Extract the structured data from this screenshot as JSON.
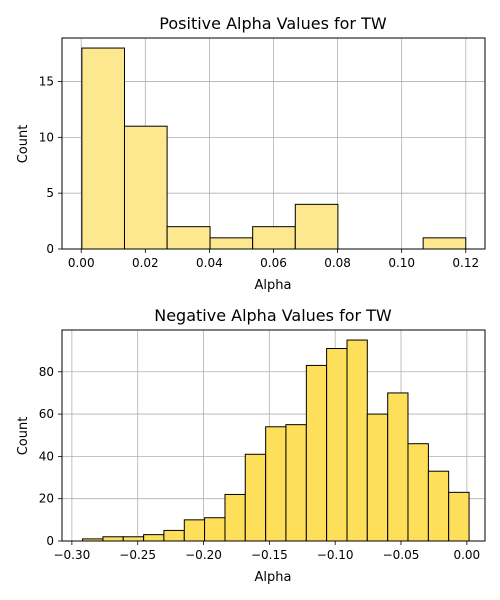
{
  "chart_data": [
    {
      "type": "bar",
      "title": "Positive Alpha Values for TW",
      "xlabel": "Alpha",
      "ylabel": "Count",
      "bar_color": "#fee88f",
      "edge_color": "#000000",
      "grid": true,
      "xlim": [
        -0.006,
        0.126
      ],
      "ylim": [
        0,
        18.9
      ],
      "xticks": [
        0.0,
        0.02,
        0.04,
        0.06,
        0.08,
        0.1,
        0.12
      ],
      "xtick_labels": [
        "0.00",
        "0.02",
        "0.04",
        "0.06",
        "0.08",
        "0.10",
        "0.12"
      ],
      "yticks": [
        0,
        5,
        10,
        15
      ],
      "ytick_labels": [
        "0",
        "5",
        "10",
        "15"
      ],
      "bins": [
        {
          "x0": 0.0002,
          "x1": 0.0135,
          "count": 18
        },
        {
          "x0": 0.0135,
          "x1": 0.0268,
          "count": 11
        },
        {
          "x0": 0.0268,
          "x1": 0.0402,
          "count": 2
        },
        {
          "x0": 0.0402,
          "x1": 0.0535,
          "count": 1
        },
        {
          "x0": 0.0535,
          "x1": 0.0668,
          "count": 2
        },
        {
          "x0": 0.0668,
          "x1": 0.0801,
          "count": 4
        },
        {
          "x0": 0.0801,
          "x1": 0.0934,
          "count": 0
        },
        {
          "x0": 0.0934,
          "x1": 0.1067,
          "count": 0
        },
        {
          "x0": 0.1067,
          "x1": 0.12,
          "count": 1
        }
      ]
    },
    {
      "type": "bar",
      "title": "Negative Alpha Values for TW",
      "xlabel": "Alpha",
      "ylabel": "Count",
      "bar_color": "#fedf5a",
      "edge_color": "#000000",
      "grid": true,
      "xlim": [
        -0.3075,
        0.0138
      ],
      "ylim": [
        0,
        99.75
      ],
      "xticks": [
        -0.3,
        -0.25,
        -0.2,
        -0.15,
        -0.1,
        -0.05,
        0.0
      ],
      "xtick_labels": [
        "−0.30",
        "−0.25",
        "−0.20",
        "−0.15",
        "−0.10",
        "−0.05",
        "0.00"
      ],
      "yticks": [
        0,
        20,
        40,
        60,
        80
      ],
      "ytick_labels": [
        "0",
        "20",
        "40",
        "60",
        "80"
      ],
      "bins": [
        {
          "x0": -0.2919,
          "x1": -0.2764,
          "count": 1
        },
        {
          "x0": -0.2764,
          "x1": -0.261,
          "count": 2
        },
        {
          "x0": -0.261,
          "x1": -0.2455,
          "count": 2
        },
        {
          "x0": -0.2455,
          "x1": -0.2301,
          "count": 3
        },
        {
          "x0": -0.2301,
          "x1": -0.2146,
          "count": 5
        },
        {
          "x0": -0.2146,
          "x1": -0.1992,
          "count": 10
        },
        {
          "x0": -0.1992,
          "x1": -0.1837,
          "count": 11
        },
        {
          "x0": -0.1837,
          "x1": -0.1683,
          "count": 22
        },
        {
          "x0": -0.1683,
          "x1": -0.1528,
          "count": 41
        },
        {
          "x0": -0.1528,
          "x1": -0.1374,
          "count": 54
        },
        {
          "x0": -0.1374,
          "x1": -0.1219,
          "count": 55
        },
        {
          "x0": -0.1219,
          "x1": -0.1065,
          "count": 83
        },
        {
          "x0": -0.1065,
          "x1": -0.091,
          "count": 91
        },
        {
          "x0": -0.091,
          "x1": -0.0756,
          "count": 95
        },
        {
          "x0": -0.0756,
          "x1": -0.0601,
          "count": 60
        },
        {
          "x0": -0.0601,
          "x1": -0.0447,
          "count": 70
        },
        {
          "x0": -0.0447,
          "x1": -0.0292,
          "count": 46
        },
        {
          "x0": -0.0292,
          "x1": -0.0138,
          "count": 33
        },
        {
          "x0": -0.0138,
          "x1": 0.0017,
          "count": 23
        }
      ]
    }
  ]
}
